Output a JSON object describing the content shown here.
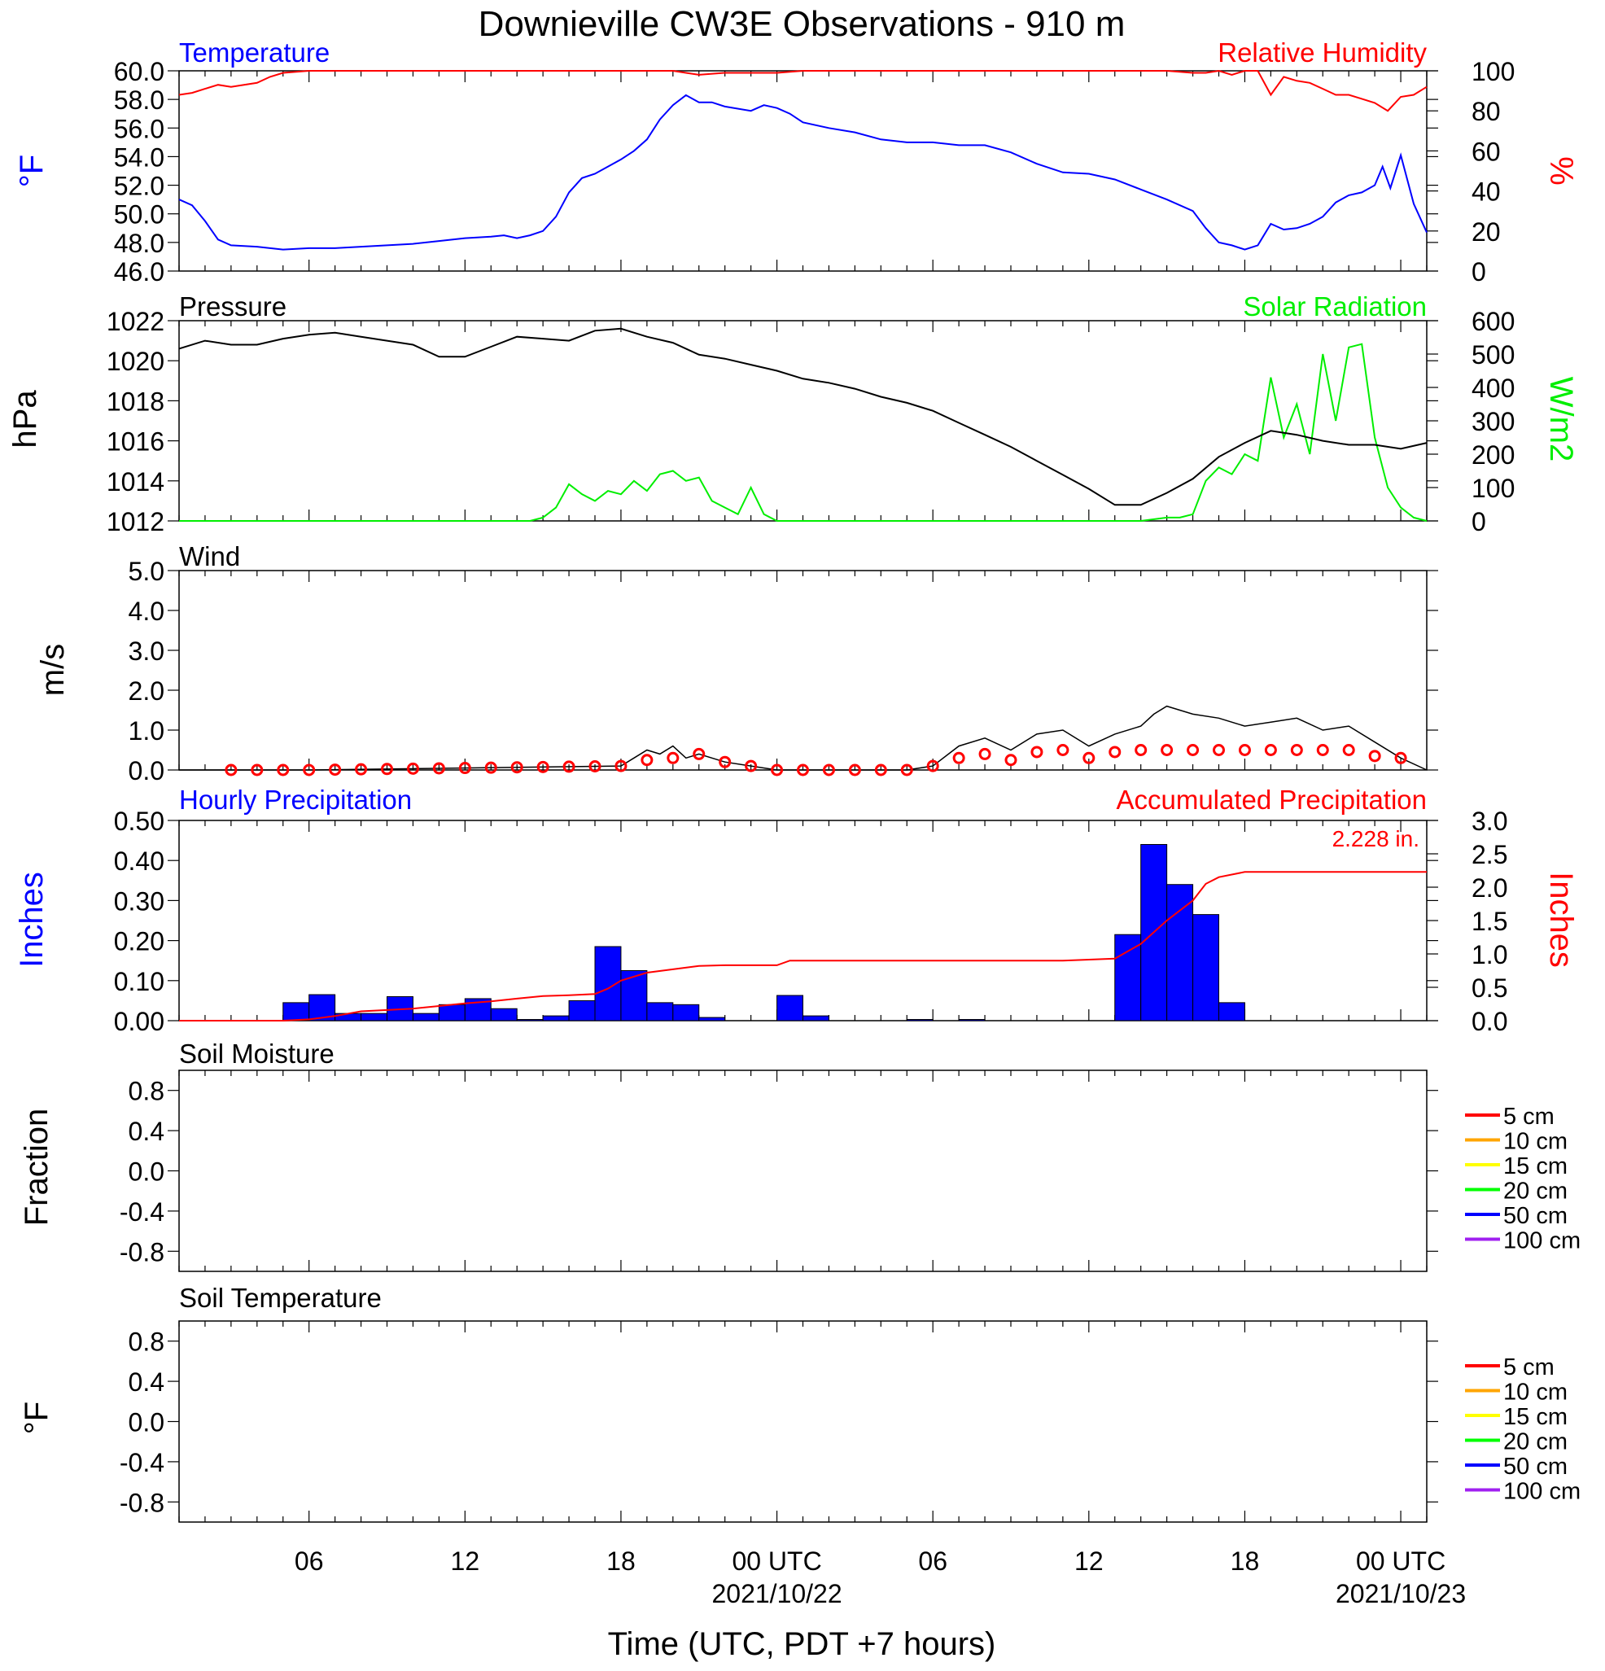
{
  "title": "Downieville CW3E Observations - 910 m",
  "xlabel": "Time (UTC, PDT +7 hours)",
  "x_ticks": [
    {
      "hour": 5,
      "label": "06",
      "date": ""
    },
    {
      "hour": 11,
      "label": "12",
      "date": ""
    },
    {
      "hour": 17,
      "label": "18",
      "date": ""
    },
    {
      "hour": 23,
      "label": "00 UTC",
      "date": "2021/10/22"
    },
    {
      "hour": 29,
      "label": "06",
      "date": ""
    },
    {
      "hour": 35,
      "label": "12",
      "date": ""
    },
    {
      "hour": 41,
      "label": "18",
      "date": ""
    },
    {
      "hour": 47,
      "label": "00 UTC",
      "date": "2021/10/23"
    }
  ],
  "colors": {
    "temperature": "#0000ff",
    "humidity": "#ff0000",
    "pressure": "#000000",
    "solar": "#00ee00",
    "wind": "#000000",
    "wind_barb": "#ff0000",
    "hourly_precip": "#0000ff",
    "accum_precip": "#ff0000"
  },
  "soil_legend": [
    {
      "label": "5 cm",
      "color": "#ff0000"
    },
    {
      "label": "10 cm",
      "color": "#ffa500"
    },
    {
      "label": "15 cm",
      "color": "#ffff00"
    },
    {
      "label": "20 cm",
      "color": "#00ff00"
    },
    {
      "label": "50 cm",
      "color": "#0000ff"
    },
    {
      "label": "100 cm",
      "color": "#a020f0"
    }
  ],
  "chart_data": [
    {
      "type": "line",
      "title": "Temperature / Relative Humidity",
      "x_range_hours": [
        0,
        48
      ],
      "series": [
        {
          "name": "Temperature",
          "axis": "left",
          "ylabel": "°F",
          "ylim": [
            46.0,
            60.0
          ],
          "yticks": [
            "46.0",
            "48.0",
            "50.0",
            "52.0",
            "54.0",
            "56.0",
            "58.0",
            "60.0"
          ],
          "x": [
            0,
            0.5,
            1,
            1.5,
            2,
            3,
            4,
            5,
            6,
            7,
            8,
            9,
            10,
            11,
            12,
            12.5,
            13,
            13.5,
            14,
            14.5,
            15,
            15.5,
            16,
            17,
            17.5,
            18,
            18.5,
            19,
            19.5,
            20,
            20.5,
            21,
            22,
            22.5,
            23,
            23.5,
            24,
            25,
            26,
            27,
            28,
            29,
            30,
            31,
            32,
            33,
            34,
            35,
            36,
            37,
            38,
            39,
            39.5,
            40,
            40.5,
            41,
            41.5,
            42,
            42.5,
            43,
            43.5,
            44,
            44.5,
            45,
            45.5,
            46,
            46.3,
            46.6,
            47,
            47.5,
            48
          ],
          "y": [
            51.0,
            50.6,
            49.5,
            48.2,
            47.8,
            47.7,
            47.5,
            47.6,
            47.6,
            47.7,
            47.8,
            47.9,
            48.1,
            48.3,
            48.4,
            48.5,
            48.3,
            48.5,
            48.8,
            49.8,
            51.5,
            52.5,
            52.8,
            53.8,
            54.4,
            55.2,
            56.6,
            57.6,
            58.3,
            57.8,
            57.8,
            57.5,
            57.2,
            57.6,
            57.4,
            57.0,
            56.4,
            56.0,
            55.7,
            55.2,
            55.0,
            55.0,
            54.8,
            54.8,
            54.3,
            53.5,
            52.9,
            52.8,
            52.4,
            51.7,
            51.0,
            50.2,
            49.0,
            48.0,
            47.8,
            47.5,
            47.8,
            49.3,
            48.9,
            49.0,
            49.3,
            49.8,
            50.8,
            51.3,
            51.5,
            52.0,
            53.3,
            51.8,
            54.1,
            50.7,
            48.7
          ]
        },
        {
          "name": "Relative Humidity",
          "axis": "right",
          "ylabel": "%",
          "ylim": [
            0,
            100
          ],
          "yticks": [
            "0",
            "20",
            "40",
            "60",
            "80",
            "100"
          ],
          "x": [
            0,
            0.5,
            1,
            1.5,
            2,
            2.5,
            3,
            3.5,
            4,
            5,
            10,
            18,
            19,
            19.5,
            20,
            21,
            22,
            23,
            24,
            30,
            38,
            39,
            39.5,
            40,
            40.5,
            41,
            41.5,
            42,
            42.5,
            43,
            43.5,
            44,
            44.5,
            45,
            45.5,
            46,
            46.5,
            47,
            47.5,
            48
          ],
          "y": [
            88,
            89,
            91,
            93,
            92,
            93,
            94,
            97,
            99,
            100,
            100,
            100,
            100,
            99,
            98,
            99,
            99,
            99,
            100,
            100,
            100,
            99,
            99,
            100,
            98,
            100,
            100,
            88,
            97,
            95,
            94,
            91,
            88,
            88,
            86,
            84,
            80,
            87,
            88,
            92
          ]
        }
      ]
    },
    {
      "type": "line",
      "title": "Pressure / Solar Radiation",
      "x_range_hours": [
        0,
        48
      ],
      "series": [
        {
          "name": "Pressure",
          "axis": "left",
          "ylabel": "hPa",
          "ylim": [
            1012,
            1022
          ],
          "yticks": [
            "1012",
            "1014",
            "1016",
            "1018",
            "1020",
            "1022"
          ],
          "x": [
            0,
            1,
            2,
            3,
            4,
            5,
            6,
            7,
            8,
            9,
            10,
            11,
            12,
            13,
            14,
            15,
            16,
            17,
            18,
            19,
            20,
            21,
            22,
            23,
            24,
            25,
            26,
            27,
            28,
            29,
            30,
            31,
            32,
            33,
            34,
            35,
            36,
            37,
            38,
            39,
            40,
            41,
            42,
            43,
            44,
            45,
            46,
            47,
            48
          ],
          "y": [
            1020.6,
            1021.0,
            1020.8,
            1020.8,
            1021.1,
            1021.3,
            1021.4,
            1021.2,
            1021.0,
            1020.8,
            1020.2,
            1020.2,
            1020.7,
            1021.2,
            1021.1,
            1021.0,
            1021.5,
            1021.6,
            1021.2,
            1020.9,
            1020.3,
            1020.1,
            1019.8,
            1019.5,
            1019.1,
            1018.9,
            1018.6,
            1018.2,
            1017.9,
            1017.5,
            1016.9,
            1016.3,
            1015.7,
            1015.0,
            1014.3,
            1013.6,
            1012.8,
            1012.8,
            1013.4,
            1014.1,
            1015.2,
            1015.9,
            1016.5,
            1016.3,
            1016.0,
            1015.8,
            1015.8,
            1015.6,
            1015.9
          ]
        },
        {
          "name": "Solar Radiation",
          "axis": "right",
          "ylabel": "W/m2",
          "ylim": [
            0,
            600
          ],
          "yticks": [
            "0",
            "100",
            "200",
            "300",
            "400",
            "500",
            "600"
          ],
          "x": [
            0,
            13.5,
            14,
            14.5,
            15,
            15.5,
            16,
            16.5,
            17,
            17.5,
            18,
            18.5,
            19,
            19.5,
            20,
            20.5,
            21,
            21.5,
            22,
            22.5,
            23,
            24,
            32,
            37,
            38,
            38.5,
            39,
            39.5,
            40,
            40.5,
            41,
            41.5,
            42,
            42.5,
            43,
            43.5,
            44,
            44.5,
            45,
            45.5,
            46,
            46.5,
            47,
            47.5,
            48
          ],
          "y": [
            0,
            0,
            10,
            40,
            110,
            80,
            60,
            90,
            80,
            120,
            90,
            140,
            150,
            120,
            130,
            60,
            40,
            20,
            100,
            20,
            0,
            0,
            0,
            0,
            10,
            10,
            20,
            120,
            160,
            140,
            200,
            180,
            430,
            250,
            350,
            200,
            500,
            300,
            520,
            530,
            250,
            100,
            40,
            10,
            0
          ]
        }
      ]
    },
    {
      "type": "line",
      "title": "Wind",
      "x_range_hours": [
        0,
        48
      ],
      "series": [
        {
          "name": "Wind",
          "axis": "left",
          "ylabel": "m/s",
          "ylim": [
            0,
            5.0
          ],
          "yticks": [
            "0.0",
            "1.0",
            "2.0",
            "3.0",
            "4.0",
            "5.0"
          ],
          "x": [
            0,
            5,
            17,
            17.5,
            18,
            18.5,
            19,
            19.5,
            20,
            21,
            22,
            23,
            24,
            28,
            29,
            30,
            31,
            32,
            33,
            34,
            35,
            36,
            37,
            37.5,
            38,
            39,
            40,
            41,
            42,
            43,
            44,
            45,
            46,
            47,
            48
          ],
          "y": [
            0,
            0,
            0.1,
            0.3,
            0.5,
            0.4,
            0.6,
            0.3,
            0.4,
            0.2,
            0.1,
            0,
            0,
            0,
            0.1,
            0.6,
            0.8,
            0.5,
            0.9,
            1.0,
            0.6,
            0.9,
            1.1,
            1.4,
            1.6,
            1.4,
            1.3,
            1.1,
            1.2,
            1.3,
            1.0,
            1.1,
            0.7,
            0.3,
            0
          ]
        }
      ]
    },
    {
      "type": "bar",
      "title": "Precipitation",
      "x_range_hours": [
        0,
        48
      ],
      "series": [
        {
          "name": "Hourly Precipitation",
          "axis": "left",
          "ylabel": "Inches",
          "ylim": [
            0,
            0.5
          ],
          "yticks": [
            "0.00",
            "0.10",
            "0.20",
            "0.30",
            "0.40",
            "0.50"
          ],
          "x": [
            4,
            5,
            6,
            7,
            8,
            9,
            10,
            11,
            12,
            13,
            14,
            15,
            16,
            17,
            18,
            19,
            20,
            21,
            22,
            23,
            24,
            25,
            26,
            27,
            28,
            29,
            30,
            31,
            32,
            33,
            34,
            35,
            36,
            37,
            38,
            39,
            40,
            41,
            42
          ],
          "y": [
            0.045,
            0.065,
            0.018,
            0.018,
            0.06,
            0.018,
            0.04,
            0.055,
            0.03,
            0.003,
            0.012,
            0.05,
            0.185,
            0.125,
            0.045,
            0.04,
            0.008,
            0,
            0,
            0.063,
            0.012,
            0,
            0,
            0,
            0.003,
            0,
            0.003,
            0,
            0,
            0,
            0,
            0,
            0.215,
            0.44,
            0.34,
            0.265,
            0.045,
            0,
            0
          ]
        },
        {
          "name": "Accumulated Precipitation",
          "type": "line",
          "axis": "right",
          "ylabel": "Inches",
          "ylim": [
            0,
            3.0
          ],
          "yticks": [
            "0.0",
            "0.5",
            "1.0",
            "1.5",
            "2.0",
            "2.5",
            "3.0"
          ],
          "annotation": "2.228 in.",
          "x": [
            0,
            4,
            5,
            6,
            7,
            8,
            9,
            10,
            11,
            12,
            13,
            14,
            15,
            16,
            16.5,
            17,
            18,
            19,
            20,
            21,
            22,
            23,
            23.5,
            24,
            28,
            34,
            36,
            37,
            38,
            39,
            39.5,
            40,
            41,
            48
          ],
          "y": [
            0,
            0,
            0.02,
            0.07,
            0.14,
            0.16,
            0.18,
            0.22,
            0.26,
            0.29,
            0.33,
            0.37,
            0.38,
            0.4,
            0.48,
            0.6,
            0.72,
            0.77,
            0.82,
            0.83,
            0.83,
            0.83,
            0.9,
            0.9,
            0.9,
            0.9,
            0.93,
            1.15,
            1.5,
            1.8,
            2.05,
            2.15,
            2.228,
            2.228
          ]
        }
      ]
    },
    {
      "type": "line",
      "title": "Soil Moisture",
      "ylabel": "Fraction",
      "ylim": [
        -1.0,
        1.0
      ],
      "yticks": [
        "-0.8",
        "-0.4",
        "0.0",
        "0.4",
        "0.8"
      ],
      "series": []
    },
    {
      "type": "line",
      "title": "Soil Temperature",
      "ylabel": "°F",
      "ylim": [
        -1.0,
        1.0
      ],
      "yticks": [
        "-0.8",
        "-0.4",
        "0.0",
        "0.4",
        "0.8"
      ],
      "series": []
    }
  ]
}
